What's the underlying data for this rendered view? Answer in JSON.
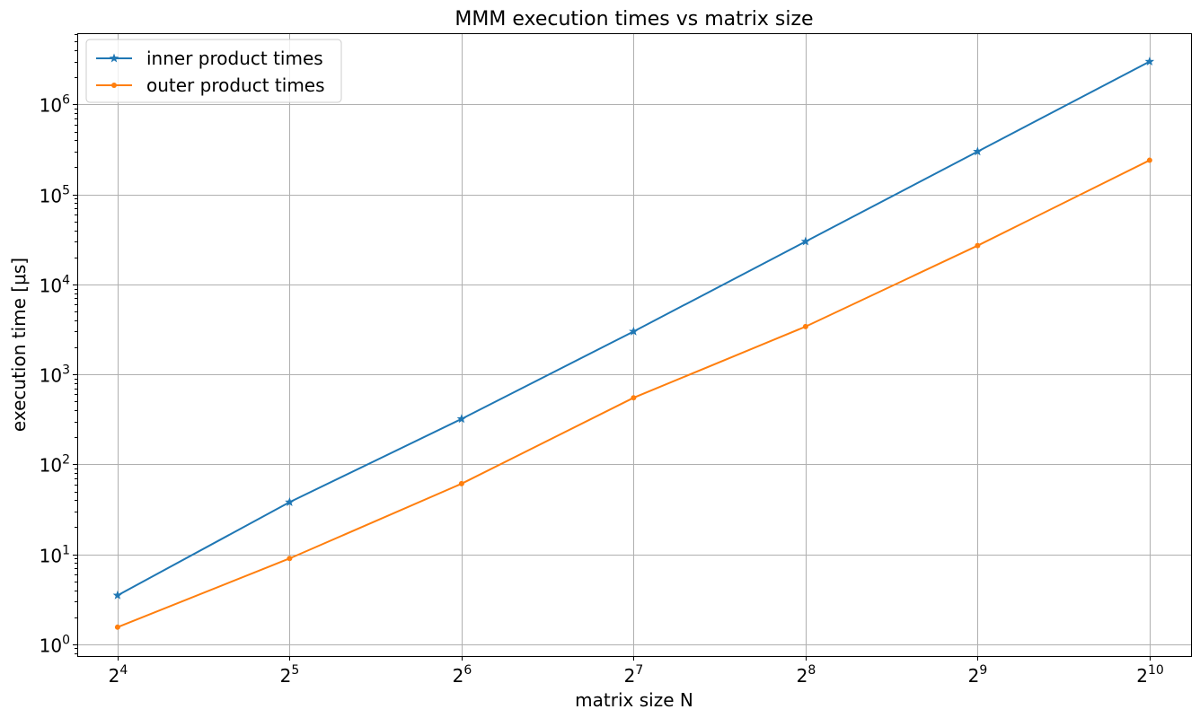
{
  "chart_data": {
    "type": "line",
    "title": "MMM execution times vs matrix size",
    "xlabel": "matrix size N",
    "ylabel": "execution time  [μs]",
    "x_scale": "log2",
    "y_scale": "log10",
    "x": [
      16,
      32,
      64,
      128,
      256,
      512,
      1024
    ],
    "x_ticks": [
      {
        "value": 16,
        "base": "2",
        "exp": "4"
      },
      {
        "value": 32,
        "base": "2",
        "exp": "5"
      },
      {
        "value": 64,
        "base": "2",
        "exp": "6"
      },
      {
        "value": 128,
        "base": "2",
        "exp": "7"
      },
      {
        "value": 256,
        "base": "2",
        "exp": "8"
      },
      {
        "value": 512,
        "base": "2",
        "exp": "9"
      },
      {
        "value": 1024,
        "base": "2",
        "exp": "10"
      }
    ],
    "y_ticks": [
      {
        "value": 1,
        "base": "10",
        "exp": "0"
      },
      {
        "value": 10,
        "base": "10",
        "exp": "1"
      },
      {
        "value": 100,
        "base": "10",
        "exp": "2"
      },
      {
        "value": 1000,
        "base": "10",
        "exp": "3"
      },
      {
        "value": 10000,
        "base": "10",
        "exp": "4"
      },
      {
        "value": 100000,
        "base": "10",
        "exp": "5"
      },
      {
        "value": 1000000,
        "base": "10",
        "exp": "6"
      }
    ],
    "xlim": [
      13.6,
      1210
    ],
    "ylim": [
      0.74,
      6200000
    ],
    "grid": true,
    "legend_position": "upper-left",
    "series": [
      {
        "name": "inner product times",
        "color": "#1f77b4",
        "marker": "star",
        "values": [
          3.5,
          38,
          320,
          3000,
          30000,
          300000,
          3000000
        ]
      },
      {
        "name": "outer product times",
        "color": "#ff7f0e",
        "marker": "dot",
        "values": [
          1.55,
          9,
          61,
          550,
          3400,
          27000,
          240000
        ]
      }
    ]
  }
}
